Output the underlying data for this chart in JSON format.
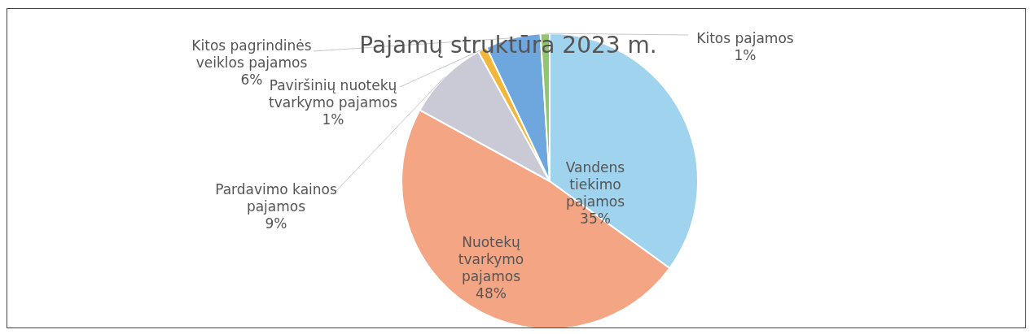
{
  "chart_data": {
    "type": "pie",
    "title": "Pajamų struktūra 2023 m.",
    "categories": [
      "Vandens tiekimo pajamos",
      "Nuotekų tvarkymo pajamos",
      "Pardavimo kainos pajamos",
      "Paviršinių nuotekų tvarkymo pajamos",
      "Kitos pagrindinės veiklos pajamos",
      "Kitos pajamos"
    ],
    "values": [
      35,
      48,
      9,
      1,
      6,
      1
    ],
    "value_labels": [
      "35%",
      "48%",
      "9%",
      "1%",
      "6%",
      "1%"
    ],
    "colors": [
      "#9fd3ee",
      "#f4a584",
      "#cacad6",
      "#f1b63a",
      "#6ea6de",
      "#93c56e"
    ]
  }
}
